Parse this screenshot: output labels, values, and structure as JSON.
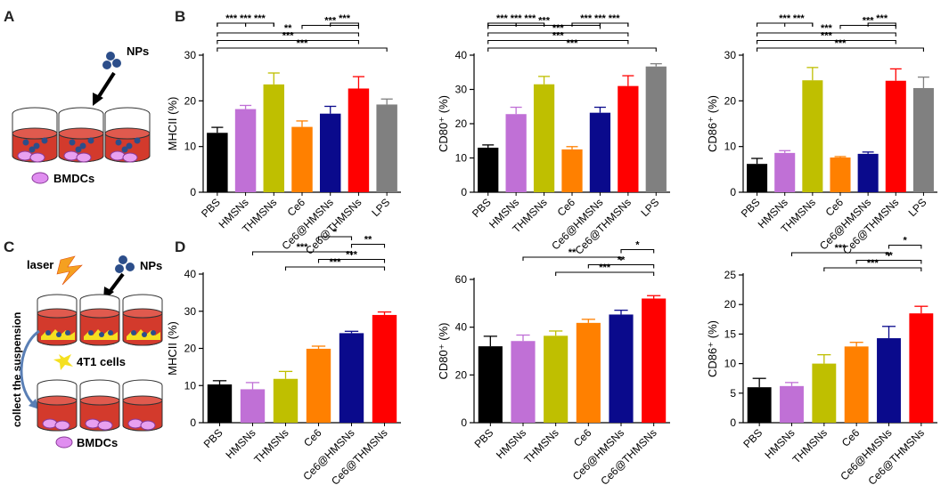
{
  "panels": {
    "A": "A",
    "B": "B",
    "C": "C",
    "D": "D"
  },
  "colors": [
    "#000000",
    "#c070d6",
    "#bfbf00",
    "#ff8000",
    "#0a0a8c",
    "#ff0000",
    "#808080"
  ],
  "schematic_a": {
    "nps": "NPs",
    "cells": "BMDCs"
  },
  "schematic_c": {
    "laser": "laser",
    "nps": "NPs",
    "tumor": "4T1 cells",
    "collect": "collect the suspension",
    "cells": "BMDCs"
  },
  "chart_data": [
    {
      "type": "bar",
      "panel": "B",
      "categories": [
        "PBS",
        "HMSNs",
        "THMSNs",
        "Ce6",
        "Ce6@HMSNs",
        "Ce6@THMSNs",
        "LPS"
      ],
      "values": [
        13,
        18.2,
        23.6,
        14.3,
        17.2,
        22.7,
        19.2
      ],
      "errors": [
        1.2,
        0.8,
        2.5,
        1.3,
        1.6,
        2.6,
        1.2
      ],
      "ylabel": "MHCII (%)",
      "ylim": [
        0,
        30
      ],
      "yticks": [
        0,
        10,
        20,
        30
      ],
      "sig": [
        {
          "a": 0,
          "b": 1,
          "label": "***"
        },
        {
          "a": 2,
          "b": 1,
          "label": "***"
        },
        {
          "a": 2,
          "b": 0,
          "label": "***"
        },
        {
          "a": 5,
          "b": 4,
          "label": "***"
        },
        {
          "a": 5,
          "b": 3,
          "label": "***"
        },
        {
          "a": 5,
          "b": 0,
          "label": "**"
        },
        {
          "a": 5,
          "b": 0,
          "label": "***"
        },
        {
          "a": 6,
          "b": 0,
          "label": "***"
        }
      ]
    },
    {
      "type": "bar",
      "panel": "B",
      "categories": [
        "PBS",
        "HMSNs",
        "THMSNs",
        "Ce6",
        "Ce6@HMSNs",
        "Ce6@THMSNs",
        "LPS"
      ],
      "values": [
        13,
        22.8,
        31.5,
        12.5,
        23.2,
        31,
        36.7
      ],
      "errors": [
        0.8,
        2,
        2.3,
        0.8,
        1.6,
        3,
        0.8
      ],
      "ylabel": "CD80⁺ (%)",
      "ylim": [
        0,
        40
      ],
      "yticks": [
        0,
        10,
        20,
        30,
        40
      ],
      "sig": [
        {
          "a": 0,
          "b": 1,
          "label": "***"
        },
        {
          "a": 2,
          "b": 1,
          "label": "***"
        },
        {
          "a": 2,
          "b": 0,
          "label": "***"
        },
        {
          "a": 3,
          "b": 4,
          "label": "***"
        },
        {
          "a": 5,
          "b": 4,
          "label": "***"
        },
        {
          "a": 5,
          "b": 3,
          "label": "***"
        },
        {
          "a": 4,
          "b": 0,
          "label": "***"
        },
        {
          "a": 5,
          "b": 0,
          "label": "***"
        },
        {
          "a": 5,
          "b": 0,
          "label": "***"
        },
        {
          "a": 6,
          "b": 0,
          "label": "***"
        }
      ]
    },
    {
      "type": "bar",
      "panel": "B",
      "categories": [
        "PBS",
        "HMSNs",
        "THMSNs",
        "Ce6",
        "Ce6@HMSNs",
        "Ce6@THMSNs",
        "LPS"
      ],
      "values": [
        6.2,
        8.6,
        24.5,
        7.6,
        8.4,
        24.4,
        22.8
      ],
      "errors": [
        1.2,
        0.5,
        2.8,
        0.2,
        0.4,
        2.6,
        2.4
      ],
      "ylabel": "CD86⁺ (%)",
      "ylim": [
        0,
        30
      ],
      "yticks": [
        0,
        10,
        20,
        30
      ],
      "sig": [
        {
          "a": 2,
          "b": 1,
          "label": "***"
        },
        {
          "a": 2,
          "b": 0,
          "label": "***"
        },
        {
          "a": 5,
          "b": 4,
          "label": "***"
        },
        {
          "a": 5,
          "b": 3,
          "label": "***"
        },
        {
          "a": 5,
          "b": 0,
          "label": "***"
        },
        {
          "a": 5,
          "b": 0,
          "label": "***"
        },
        {
          "a": 6,
          "b": 0,
          "label": "***"
        }
      ]
    },
    {
      "type": "bar",
      "panel": "D",
      "categories": [
        "PBS",
        "HMSNs",
        "THMSNs",
        "Ce6",
        "Ce6@HMSNs",
        "Ce6@THMSNs"
      ],
      "values": [
        10.3,
        9,
        11.8,
        19.9,
        24.1,
        29
      ],
      "errors": [
        1,
        1.8,
        2,
        0.7,
        0.5,
        0.8
      ],
      "ylabel": "MHCII (%)",
      "ylim": [
        0,
        40
      ],
      "yticks": [
        0,
        10,
        20,
        30,
        40
      ],
      "sig": [
        {
          "a": 4,
          "b": 3,
          "label": "*"
        },
        {
          "a": 5,
          "b": 4,
          "label": "**"
        },
        {
          "a": 4,
          "b": 1,
          "label": "***"
        },
        {
          "a": 5,
          "b": 3,
          "label": "***"
        },
        {
          "a": 5,
          "b": 2,
          "label": "***"
        }
      ]
    },
    {
      "type": "bar",
      "panel": "D",
      "categories": [
        "PBS",
        "HMSNs",
        "THMSNs",
        "Ce6",
        "Ce6@HMSNs",
        "Ce6@THMSNs"
      ],
      "values": [
        32,
        34.2,
        36.4,
        41.8,
        45.3,
        52
      ],
      "errors": [
        4.2,
        2.5,
        2,
        1.5,
        1.8,
        1.2
      ],
      "ylabel": "CD80⁺ (%)",
      "ylim": [
        0,
        60
      ],
      "yticks": [
        0,
        20,
        40,
        60
      ],
      "sig": [
        {
          "a": 5,
          "b": 4,
          "label": "*"
        },
        {
          "a": 4,
          "b": 1,
          "label": "**"
        },
        {
          "a": 5,
          "b": 3,
          "label": "**"
        },
        {
          "a": 5,
          "b": 2,
          "label": "***"
        }
      ]
    },
    {
      "type": "bar",
      "panel": "D",
      "categories": [
        "PBS",
        "HMSNs",
        "THMSNs",
        "Ce6",
        "Ce6@HMSNs",
        "Ce6@THMSNs"
      ],
      "values": [
        6,
        6.2,
        10,
        12.9,
        14.3,
        18.5
      ],
      "errors": [
        1.5,
        0.6,
        1.5,
        0.7,
        2,
        1.2
      ],
      "ylabel": "CD86⁺ (%)",
      "ylim": [
        0,
        25
      ],
      "yticks": [
        0,
        5,
        10,
        15,
        20,
        25
      ],
      "sig": [
        {
          "a": 5,
          "b": 4,
          "label": "*"
        },
        {
          "a": 4,
          "b": 1,
          "label": "***"
        },
        {
          "a": 5,
          "b": 3,
          "label": "**"
        },
        {
          "a": 5,
          "b": 2,
          "label": "***"
        }
      ]
    }
  ]
}
